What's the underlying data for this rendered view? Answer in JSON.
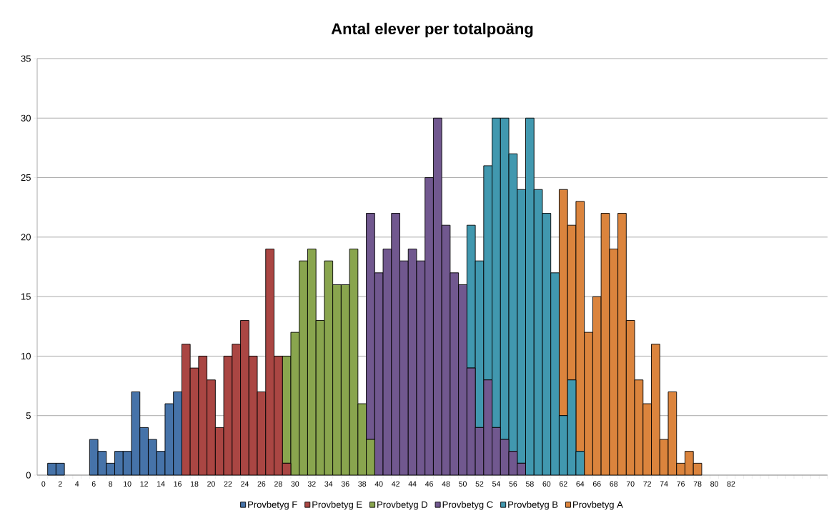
{
  "chart_data": {
    "type": "bar",
    "title": "Antal elever per totalpoäng",
    "stacked": true,
    "grid": "y",
    "legend": "bottom",
    "categories": [
      "0",
      null,
      "2",
      null,
      "4",
      null,
      "6",
      null,
      "8",
      null,
      "10",
      null,
      "12",
      null,
      "14",
      null,
      "16",
      null,
      "18",
      null,
      "20",
      null,
      "22",
      null,
      "24",
      null,
      "26",
      null,
      "28",
      null,
      "30",
      null,
      "32",
      null,
      "34",
      null,
      "36",
      null,
      "38",
      null,
      "40",
      null,
      "42",
      null,
      "44",
      null,
      "46",
      null,
      "48",
      null,
      "50",
      null,
      "52",
      null,
      "54",
      null,
      "56",
      null,
      "58",
      null,
      "60",
      null,
      "62",
      null,
      "64",
      null,
      "66",
      null,
      "68",
      null,
      "70",
      null,
      "72",
      null,
      "74",
      null,
      "76",
      null,
      "78",
      null,
      "80",
      null,
      "82",
      null,
      null,
      null,
      null,
      null,
      null,
      null,
      null,
      null,
      null,
      null
    ],
    "ylim": [
      0,
      35
    ],
    "yticks": [
      0,
      5,
      10,
      15,
      20,
      25,
      30,
      35
    ],
    "series": [
      {
        "name": "Provbetyg F",
        "color": "#4673a9",
        "values": [
          null,
          1,
          1,
          null,
          null,
          null,
          3,
          2,
          1,
          2,
          2,
          7,
          4,
          3,
          2,
          6,
          7,
          null,
          null,
          null,
          null,
          null,
          null,
          null,
          null,
          null,
          null,
          null,
          null,
          null,
          null,
          null,
          null,
          null,
          null,
          null,
          null,
          null,
          null,
          null,
          null,
          null,
          null,
          null,
          null,
          null,
          null,
          null,
          null,
          null,
          null,
          null,
          null,
          null,
          null,
          null,
          null,
          null,
          null,
          null,
          null,
          null,
          null,
          null,
          null,
          null,
          null,
          null,
          null,
          null,
          null,
          null,
          null,
          null,
          null,
          null,
          null,
          null,
          null,
          null,
          null,
          null,
          null,
          null,
          null,
          null,
          null,
          null,
          null,
          null,
          null,
          null,
          null,
          null
        ]
      },
      {
        "name": "Provbetyg E",
        "color": "#aa4643",
        "values": [
          null,
          null,
          null,
          null,
          null,
          null,
          null,
          null,
          null,
          null,
          null,
          null,
          null,
          null,
          null,
          null,
          null,
          11,
          9,
          10,
          8,
          4,
          10,
          11,
          13,
          10,
          7,
          19,
          10,
          1,
          null,
          null,
          null,
          null,
          null,
          null,
          null,
          null,
          null,
          null,
          null,
          null,
          null,
          null,
          null,
          null,
          null,
          null,
          null,
          null,
          null,
          null,
          null,
          null,
          null,
          null,
          null,
          null,
          null,
          null,
          null,
          null,
          null,
          null,
          null,
          null,
          null,
          null,
          null,
          null,
          null,
          null,
          null,
          null,
          null,
          null,
          null,
          null,
          null,
          null,
          null,
          null,
          null,
          null,
          null,
          null,
          null,
          null,
          null,
          null,
          null,
          null,
          null,
          null
        ]
      },
      {
        "name": "Provbetyg D",
        "color": "#89a54e",
        "values": [
          null,
          null,
          null,
          null,
          null,
          null,
          null,
          null,
          null,
          null,
          null,
          null,
          null,
          null,
          null,
          null,
          null,
          null,
          null,
          null,
          null,
          null,
          null,
          null,
          null,
          null,
          null,
          null,
          null,
          9,
          12,
          18,
          19,
          13,
          18,
          16,
          16,
          19,
          6,
          3,
          null,
          null,
          null,
          null,
          null,
          null,
          null,
          null,
          null,
          null,
          null,
          null,
          null,
          null,
          null,
          null,
          null,
          null,
          null,
          null,
          null,
          null,
          null,
          null,
          null,
          null,
          null,
          null,
          null,
          null,
          null,
          null,
          null,
          null,
          null,
          null,
          null,
          null,
          null,
          null,
          null,
          null,
          null,
          null,
          null,
          null,
          null,
          null,
          null,
          null,
          null,
          null,
          null,
          null
        ]
      },
      {
        "name": "Provbetyg C",
        "color": "#71588f",
        "values": [
          null,
          null,
          null,
          null,
          null,
          null,
          null,
          null,
          null,
          null,
          null,
          null,
          null,
          null,
          null,
          null,
          null,
          null,
          null,
          null,
          null,
          null,
          null,
          null,
          null,
          null,
          null,
          null,
          null,
          null,
          null,
          null,
          null,
          null,
          null,
          null,
          null,
          null,
          null,
          19,
          17,
          19,
          22,
          18,
          19,
          18,
          25,
          30,
          21,
          17,
          16,
          9,
          4,
          8,
          4,
          3,
          2,
          1,
          null,
          null,
          null,
          null,
          null,
          null,
          null,
          null,
          null,
          null,
          null,
          null,
          null,
          null,
          null,
          null,
          null,
          null,
          null,
          null,
          null,
          null,
          null,
          null,
          null,
          null,
          null,
          null,
          null,
          null,
          null,
          null,
          null,
          null,
          null,
          null
        ]
      },
      {
        "name": "Provbetyg B",
        "color": "#4198af",
        "values": [
          null,
          null,
          null,
          null,
          null,
          null,
          null,
          null,
          null,
          null,
          null,
          null,
          null,
          null,
          null,
          null,
          null,
          null,
          null,
          null,
          null,
          null,
          null,
          null,
          null,
          null,
          null,
          null,
          null,
          null,
          null,
          null,
          null,
          null,
          null,
          null,
          null,
          null,
          null,
          null,
          null,
          null,
          null,
          null,
          null,
          null,
          null,
          null,
          null,
          null,
          null,
          12,
          14,
          18,
          26,
          27,
          25,
          23,
          30,
          24,
          22,
          17,
          5,
          8,
          2,
          null,
          null,
          null,
          null,
          null,
          null,
          null,
          null,
          null,
          null,
          null,
          null,
          null,
          null,
          null,
          null,
          null,
          null,
          null,
          null,
          null,
          null,
          null,
          null,
          null,
          null,
          null,
          null,
          null
        ]
      },
      {
        "name": "Provbetyg A",
        "color": "#db843d",
        "values": [
          null,
          null,
          null,
          null,
          null,
          null,
          null,
          null,
          null,
          null,
          null,
          null,
          null,
          null,
          null,
          null,
          null,
          null,
          null,
          null,
          null,
          null,
          null,
          null,
          null,
          null,
          null,
          null,
          null,
          null,
          null,
          null,
          null,
          null,
          null,
          null,
          null,
          null,
          null,
          null,
          null,
          null,
          null,
          null,
          null,
          null,
          null,
          null,
          null,
          null,
          null,
          null,
          null,
          null,
          null,
          null,
          null,
          null,
          null,
          null,
          null,
          null,
          19,
          13,
          21,
          12,
          15,
          22,
          19,
          22,
          13,
          8,
          6,
          11,
          3,
          7,
          1,
          2,
          1,
          null,
          null,
          null,
          null,
          null,
          null,
          null,
          null,
          null,
          null,
          null,
          null,
          null,
          null,
          null
        ]
      }
    ]
  }
}
